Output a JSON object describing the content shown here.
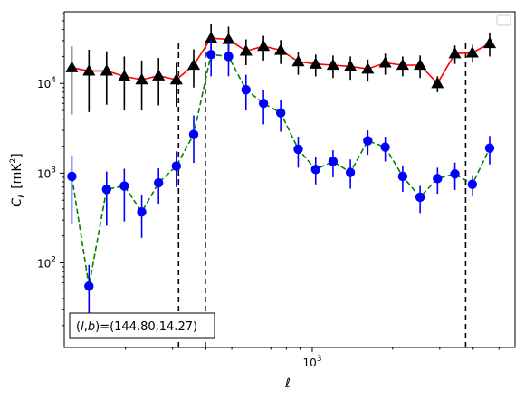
{
  "chart_data": {
    "type": "scatter",
    "xlabel": "ℓ",
    "ylabel_main": "C",
    "ylabel_sub": "ℓ",
    "ylabel_unit": "[mK",
    "ylabel_unit_sup": "2",
    "ylabel_unit_close": "]",
    "x_scale": "log",
    "y_scale": "log",
    "xlim": [
      118,
      5740
    ],
    "ylim": [
      11.4,
      63000
    ],
    "x_ticks": [
      {
        "value": 1000,
        "base": "10",
        "exp": "3"
      }
    ],
    "y_ticks": [
      {
        "value": 100,
        "base": "10",
        "exp": "2"
      },
      {
        "value": 1000,
        "base": "10",
        "exp": "3"
      },
      {
        "value": 10000,
        "base": "10",
        "exp": "4"
      }
    ],
    "legend": "top-right",
    "annotation": {
      "prefix": "(",
      "italic_l": "l",
      "sep": ",",
      "italic_b": "b",
      "suffix": ")=(144.80,14.27)"
    },
    "vlines": [
      316,
      398,
      3750
    ],
    "series": [
      {
        "color": "#ff0000",
        "marker": "triangle",
        "marker_color": "#000000",
        "errbar_color": "#000000",
        "linestyle": "solid",
        "x": [
          126,
          146,
          170,
          198,
          230,
          266,
          310,
          360,
          418,
          486,
          565,
          657,
          762,
          886,
          1030,
          1196,
          1389,
          1614,
          1876,
          2180,
          2533,
          2942,
          3419,
          3972,
          4613,
          5360
        ],
        "y": [
          15000,
          13800,
          13800,
          12000,
          11000,
          12200,
          11000,
          16000,
          32000,
          31000,
          23000,
          26000,
          23500,
          17500,
          16500,
          16000,
          15500,
          14500,
          17000,
          16000,
          16000,
          10000,
          21500,
          22000,
          28000,
          null
        ],
        "err_lo": [
          10500,
          9000,
          8000,
          7000,
          6000,
          6500,
          5500,
          7000,
          14000,
          12000,
          7000,
          8000,
          7000,
          5000,
          4500,
          4500,
          4500,
          4000,
          4500,
          4000,
          4500,
          2000,
          5000,
          5000,
          8000,
          null
        ],
        "err_hi": [
          11000,
          10000,
          9000,
          8000,
          7000,
          7000,
          6000,
          8000,
          14000,
          12000,
          8000,
          8000,
          7000,
          5000,
          4500,
          4500,
          4500,
          4000,
          4500,
          4000,
          4500,
          2000,
          5000,
          5000,
          9000,
          null
        ]
      },
      {
        "color": "#008000",
        "marker": "circle",
        "marker_color": "#0000ff",
        "errbar_color": "#0000ff",
        "linestyle": "dashed",
        "x": [
          126,
          146,
          170,
          198,
          230,
          266,
          310,
          360,
          418,
          486,
          565,
          657,
          762,
          886,
          1030,
          1196,
          1389,
          1614,
          1876,
          2180,
          2533,
          2942,
          3419,
          3972,
          4613,
          5360
        ],
        "y": [
          920,
          55,
          660,
          720,
          370,
          780,
          1200,
          2700,
          21000,
          20000,
          8500,
          6000,
          4700,
          1850,
          1100,
          1350,
          1020,
          2300,
          1950,
          920,
          540,
          870,
          980,
          750,
          1900,
          null
        ],
        "err_lo": [
          650,
          35,
          400,
          430,
          180,
          330,
          500,
          1400,
          9000,
          8000,
          3500,
          2500,
          1800,
          700,
          350,
          450,
          350,
          700,
          600,
          300,
          180,
          280,
          330,
          200,
          650,
          null
        ],
        "err_hi": [
          650,
          40,
          380,
          400,
          200,
          350,
          550,
          1700,
          9500,
          9000,
          4000,
          2500,
          1800,
          700,
          400,
          450,
          400,
          700,
          600,
          300,
          180,
          280,
          330,
          200,
          700,
          null
        ]
      }
    ]
  }
}
